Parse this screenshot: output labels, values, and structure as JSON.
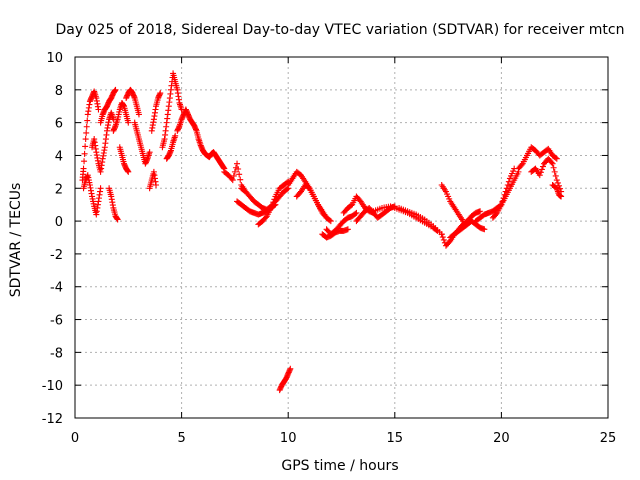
{
  "chart_data": {
    "type": "scatter",
    "title": "Day 025 of 2018, Sidereal Day-to-day VTEC variation (SDTVAR) for receiver mtcn",
    "xlabel": "GPS time / hours",
    "ylabel": "SDTVAR / TECUs",
    "xlim": [
      0,
      25
    ],
    "ylim": [
      -12,
      10
    ],
    "xticks": [
      0,
      5,
      10,
      15,
      20,
      25
    ],
    "yticks": [
      -12,
      -10,
      -8,
      -6,
      -4,
      -2,
      0,
      2,
      4,
      6,
      8,
      10
    ],
    "grid": true,
    "marker": "plus",
    "color": "#ff0000",
    "series": [
      {
        "name": "SDTVAR",
        "segments": [
          {
            "x": [
              0.35,
              0.4,
              0.5,
              0.6,
              0.7,
              0.8,
              0.9,
              1.0,
              1.1
            ],
            "y": [
              2.5,
              3.2,
              5.0,
              6.5,
              7.3,
              7.6,
              7.9,
              7.5,
              6.8
            ]
          },
          {
            "x": [
              0.4,
              0.5,
              0.6,
              0.7,
              0.8,
              0.9,
              1.0,
              1.1,
              1.2
            ],
            "y": [
              2.0,
              2.5,
              2.8,
              2.2,
              1.5,
              0.9,
              0.4,
              1.2,
              2.0
            ]
          },
          {
            "x": [
              0.8,
              0.9,
              1.0,
              1.1,
              1.2,
              1.3,
              1.4,
              1.5,
              1.6,
              1.7,
              1.8
            ],
            "y": [
              4.5,
              5.0,
              4.2,
              3.5,
              3.0,
              3.8,
              4.5,
              5.5,
              6.2,
              6.6,
              6.2
            ]
          },
          {
            "x": [
              1.2,
              1.3,
              1.4,
              1.5,
              1.6,
              1.7,
              1.8,
              1.9
            ],
            "y": [
              6.0,
              6.5,
              6.8,
              7.0,
              7.3,
              7.5,
              7.8,
              8.0
            ]
          },
          {
            "x": [
              1.6,
              1.7,
              1.8,
              1.9,
              2.0
            ],
            "y": [
              2.0,
              1.5,
              0.8,
              0.3,
              0.1
            ]
          },
          {
            "x": [
              1.8,
              1.9,
              2.0,
              2.1,
              2.2,
              2.3,
              2.4,
              2.5
            ],
            "y": [
              5.5,
              5.8,
              6.2,
              6.8,
              7.2,
              7.0,
              6.5,
              6.0
            ]
          },
          {
            "x": [
              2.1,
              2.2,
              2.3,
              2.4,
              2.5
            ],
            "y": [
              4.5,
              4.0,
              3.5,
              3.2,
              3.0
            ]
          },
          {
            "x": [
              2.4,
              2.5,
              2.6,
              2.7,
              2.8,
              2.9,
              3.0
            ],
            "y": [
              7.5,
              7.8,
              8.0,
              7.8,
              7.5,
              7.0,
              6.5
            ]
          },
          {
            "x": [
              2.8,
              2.9,
              3.0,
              3.1,
              3.2,
              3.3,
              3.4,
              3.5
            ],
            "y": [
              6.0,
              5.5,
              5.0,
              4.5,
              4.0,
              3.5,
              3.8,
              4.2
            ]
          },
          {
            "x": [
              3.5,
              3.6,
              3.7,
              3.8
            ],
            "y": [
              2.0,
              2.5,
              3.0,
              2.2
            ]
          },
          {
            "x": [
              3.6,
              3.7,
              3.8,
              3.9,
              4.0
            ],
            "y": [
              5.5,
              6.2,
              7.0,
              7.5,
              7.8
            ]
          },
          {
            "x": [
              4.1,
              4.2,
              4.3,
              4.4,
              4.5,
              4.6,
              4.7,
              4.8,
              4.9,
              5.0
            ],
            "y": [
              4.5,
              5.0,
              6.0,
              7.0,
              8.0,
              9.0,
              8.5,
              8.0,
              7.2,
              6.8
            ]
          },
          {
            "x": [
              4.3,
              4.4,
              4.5,
              4.6,
              4.7
            ],
            "y": [
              3.8,
              4.0,
              4.3,
              4.8,
              5.2
            ]
          },
          {
            "x": [
              4.8,
              4.9,
              5.0,
              5.1,
              5.2,
              5.3,
              5.4,
              5.5,
              5.6,
              5.7,
              5.8
            ],
            "y": [
              5.5,
              5.8,
              6.2,
              6.5,
              6.8,
              6.5,
              6.2,
              6.0,
              5.8,
              5.5,
              5.0
            ]
          },
          {
            "x": [
              5.8,
              5.9,
              6.0,
              6.1,
              6.2,
              6.3,
              6.4,
              6.5,
              6.6,
              6.7,
              6.8,
              6.9,
              7.0
            ],
            "y": [
              5.0,
              4.6,
              4.3,
              4.1,
              4.0,
              3.9,
              4.1,
              4.2,
              4.0,
              3.8,
              3.6,
              3.4,
              3.2
            ]
          },
          {
            "x": [
              7.0,
              7.2,
              7.4,
              7.6,
              7.8,
              8.0
            ],
            "y": [
              3.0,
              2.8,
              2.5,
              3.5,
              2.2,
              1.8
            ]
          },
          {
            "x": [
              7.6,
              7.8,
              8.0,
              8.2,
              8.4,
              8.6,
              8.8,
              9.0,
              9.2,
              9.4
            ],
            "y": [
              1.2,
              1.0,
              0.8,
              0.6,
              0.5,
              0.4,
              0.5,
              0.6,
              0.8,
              1.0
            ]
          },
          {
            "x": [
              7.8,
              8.0,
              8.2,
              8.4,
              8.6,
              8.8,
              9.0,
              9.2,
              9.4,
              9.6,
              9.8,
              10.0
            ],
            "y": [
              2.0,
              1.8,
              1.5,
              1.2,
              1.0,
              0.8,
              0.7,
              0.9,
              1.2,
              1.5,
              1.8,
              2.0
            ]
          },
          {
            "x": [
              8.6,
              8.8,
              9.0,
              9.2,
              9.4,
              9.6,
              9.8,
              10.0
            ],
            "y": [
              -0.2,
              0.0,
              0.3,
              0.8,
              1.5,
              2.0,
              2.2,
              2.4
            ]
          },
          {
            "x": [
              9.6,
              9.7,
              9.8,
              9.9,
              10.0,
              10.1
            ],
            "y": [
              -10.3,
              -10.0,
              -9.8,
              -9.6,
              -9.3,
              -9.0
            ]
          },
          {
            "x": [
              10.0,
              10.2,
              10.4,
              10.6,
              10.8,
              11.0,
              11.2,
              11.4,
              11.6,
              11.8,
              12.0
            ],
            "y": [
              2.2,
              2.6,
              3.0,
              2.8,
              2.4,
              2.0,
              1.5,
              1.0,
              0.6,
              0.2,
              0.0
            ]
          },
          {
            "x": [
              10.4,
              10.6,
              10.8,
              11.0,
              11.2,
              11.4,
              11.6,
              11.8
            ],
            "y": [
              1.5,
              1.8,
              2.2,
              2.0,
              1.5,
              1.0,
              0.5,
              0.2
            ]
          },
          {
            "x": [
              11.8,
              12.0,
              12.2,
              12.4,
              12.6,
              12.8,
              13.0,
              13.2
            ],
            "y": [
              -0.5,
              -0.8,
              -0.6,
              -0.3,
              0.0,
              0.2,
              0.3,
              0.5
            ]
          },
          {
            "x": [
              11.6,
              11.8,
              12.0,
              12.2,
              12.4,
              12.6,
              12.8
            ],
            "y": [
              -0.8,
              -1.0,
              -0.9,
              -0.7,
              -0.6,
              -0.6,
              -0.5
            ]
          },
          {
            "x": [
              12.6,
              12.8,
              13.0,
              13.2,
              13.4,
              13.6,
              13.8,
              14.0
            ],
            "y": [
              0.5,
              0.8,
              1.0,
              1.5,
              1.2,
              0.8,
              0.6,
              0.5
            ]
          },
          {
            "x": [
              13.2,
              13.4,
              13.6,
              13.8,
              14.0,
              14.2,
              14.4,
              14.6,
              14.8,
              15.0
            ],
            "y": [
              0.0,
              0.3,
              0.6,
              0.8,
              0.5,
              0.2,
              0.4,
              0.6,
              0.8,
              0.9
            ]
          },
          {
            "x": [
              14.0,
              14.4,
              14.8,
              15.2,
              15.6,
              16.0,
              16.4,
              16.8,
              17.0
            ],
            "y": [
              0.6,
              0.8,
              0.9,
              0.7,
              0.5,
              0.2,
              -0.1,
              -0.4,
              -0.6
            ]
          },
          {
            "x": [
              15.2,
              15.6,
              16.0,
              16.4,
              16.8,
              17.2
            ],
            "y": [
              0.8,
              0.6,
              0.4,
              0.1,
              -0.3,
              -0.8
            ]
          },
          {
            "x": [
              17.2,
              17.4,
              17.6,
              17.8,
              18.0,
              18.2
            ],
            "y": [
              2.2,
              1.8,
              1.2,
              0.8,
              0.4,
              0.0
            ]
          },
          {
            "x": [
              17.2,
              17.4,
              17.6,
              17.8,
              18.0,
              18.2,
              18.4,
              18.6,
              18.8,
              19.0
            ],
            "y": [
              -0.8,
              -1.5,
              -1.2,
              -0.8,
              -0.5,
              -0.2,
              0.0,
              0.3,
              0.5,
              0.6
            ]
          },
          {
            "x": [
              17.6,
              17.8,
              18.0,
              18.2,
              18.4,
              18.6,
              18.8,
              19.0,
              19.2
            ],
            "y": [
              -1.0,
              -0.8,
              -0.6,
              -0.4,
              -0.2,
              0.0,
              -0.2,
              -0.4,
              -0.5
            ]
          },
          {
            "x": [
              18.8,
              19.0,
              19.2,
              19.4,
              19.6,
              19.8,
              20.0,
              20.2,
              20.4,
              20.6,
              20.8
            ],
            "y": [
              0.0,
              0.2,
              0.4,
              0.5,
              0.6,
              0.8,
              1.0,
              1.5,
              2.0,
              2.5,
              3.0
            ]
          },
          {
            "x": [
              19.6,
              19.8,
              20.0,
              20.2,
              20.4,
              20.6
            ],
            "y": [
              0.2,
              0.5,
              1.0,
              1.8,
              2.6,
              3.2
            ]
          },
          {
            "x": [
              20.8,
              21.0,
              21.2,
              21.4,
              21.6,
              21.8,
              22.0,
              22.2,
              22.4,
              22.6
            ],
            "y": [
              3.2,
              3.5,
              4.0,
              4.5,
              4.3,
              4.0,
              4.2,
              4.4,
              4.0,
              3.8
            ]
          },
          {
            "x": [
              21.4,
              21.6,
              21.8,
              22.0,
              22.2,
              22.4,
              22.6,
              22.8
            ],
            "y": [
              3.0,
              3.2,
              2.8,
              3.5,
              3.8,
              3.5,
              2.5,
              1.8
            ]
          },
          {
            "x": [
              22.4,
              22.6,
              22.7,
              22.8
            ],
            "y": [
              2.2,
              2.0,
              1.6,
              1.5
            ]
          }
        ]
      }
    ]
  }
}
